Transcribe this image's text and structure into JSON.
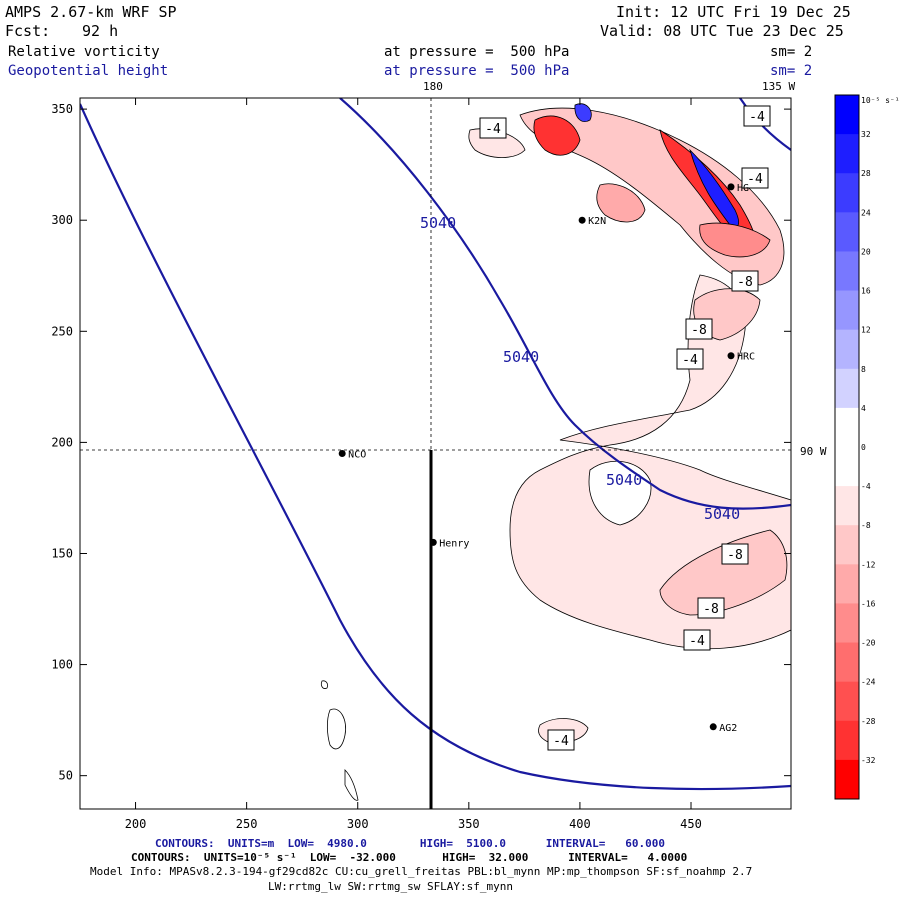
{
  "header": {
    "model": "AMPS 2.67-km WRF SP",
    "init": "Init: 12 UTC Fri 19 Dec 25",
    "fcst_label": "Fcst:",
    "fcst_value": "92 h",
    "valid": "Valid: 08 UTC Tue 23 Dec 25",
    "field1_name": "Relative vorticity",
    "field1_level": "at pressure =  500 hPa",
    "field1_sm": "sm= 2",
    "field2_name": "Geopotential height",
    "field2_level": "at pressure =  500 hPa",
    "field2_sm": "sm= 2"
  },
  "map": {
    "top_longitude_label": "180",
    "top_right_longitude_label": "135 W",
    "right_longitude_label": "90 W",
    "x_ticks": [
      "200",
      "250",
      "300",
      "350",
      "400",
      "450"
    ],
    "y_ticks": [
      "350",
      "300",
      "250",
      "200",
      "150",
      "100",
      "50"
    ],
    "stations": [
      {
        "name": "NCO",
        "x": 293,
        "y": 195
      },
      {
        "name": "Henry",
        "x": 334,
        "y": 155
      },
      {
        "name": "HRC",
        "x": 468,
        "y": 239
      },
      {
        "name": "AG2",
        "x": 460,
        "y": 72
      },
      {
        "name": "K2N",
        "x": 401,
        "y": 300
      },
      {
        "name": "HG",
        "x": 468,
        "y": 315
      }
    ],
    "height_labels": [
      "5040",
      "5040",
      "5040",
      "5040"
    ],
    "vort_labels": [
      "-4",
      "-4",
      "-4",
      "-8",
      "-8",
      "-4",
      "-8",
      "-8",
      "-4",
      "-4"
    ]
  },
  "colorbar": {
    "unit": "10⁻⁵ s⁻¹",
    "labels": [
      "32",
      "28",
      "24",
      "20",
      "16",
      "12",
      "8",
      "4",
      "0",
      "-4",
      "-8",
      "-12",
      "-16",
      "-20",
      "-24",
      "-28",
      "-32"
    ],
    "colors": [
      "#0000ff",
      "#1e1eff",
      "#3c3cff",
      "#5a5aff",
      "#7878ff",
      "#9696ff",
      "#b4b4ff",
      "#d2d2ff",
      "#ffffff",
      "#ffffff",
      "#ffe6e6",
      "#ffc8c8",
      "#ffaaaa",
      "#ff8c8c",
      "#ff6e6e",
      "#ff5050",
      "#ff3232",
      "#ff0000"
    ]
  },
  "footer": {
    "line1": "CONTOURS:  UNITS=m  LOW=  4980.0        HIGH=  5100.0      INTERVAL=   60.000",
    "line2": "CONTOURS:  UNITS=10⁻⁵ s⁻¹  LOW=  -32.000       HIGH=  32.000      INTERVAL=   4.0000",
    "line3": "Model Info: MPASv8.2.3-194-gf29cd82c CU:cu_grell_freitas PBL:bl_mynn MP:mp_thompson SF:sf_noahmp 2.7",
    "line4": "LW:rrtmg_lw SW:rrtmg_sw SFLAY:sf_mynn"
  }
}
